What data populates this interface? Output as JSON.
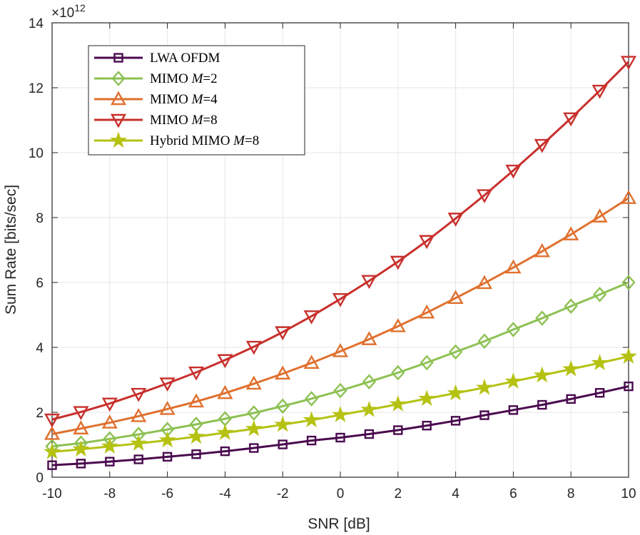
{
  "chart_data": {
    "type": "line",
    "xlabel": "SNR [dB]",
    "ylabel": "Sum Rate [bits/sec]",
    "exponent_base": "×10",
    "exponent_power": "12",
    "xlim": [
      -10,
      10
    ],
    "ylim": [
      0,
      14
    ],
    "xticks": [
      -10,
      -8,
      -6,
      -4,
      -2,
      0,
      2,
      4,
      6,
      8,
      10
    ],
    "yticks": [
      0,
      2,
      4,
      6,
      8,
      10,
      12,
      14
    ],
    "grid": true,
    "legend_position": "top-left",
    "x": [
      -10,
      -9,
      -8,
      -7,
      -6,
      -5,
      -4,
      -3,
      -2,
      -1,
      0,
      1,
      2,
      3,
      4,
      5,
      6,
      7,
      8,
      9,
      10
    ],
    "series": [
      {
        "name": "LWA OFDM",
        "legend_prefix": "LWA OFDM",
        "legend_italic": "",
        "legend_suffix": "",
        "color": "#4a0a4f",
        "marker": "square",
        "values": [
          0.37,
          0.42,
          0.48,
          0.55,
          0.63,
          0.71,
          0.8,
          0.9,
          1.01,
          1.13,
          1.22,
          1.33,
          1.45,
          1.59,
          1.74,
          1.91,
          2.07,
          2.23,
          2.41,
          2.6,
          2.8
        ]
      },
      {
        "name": "MIMO M=2",
        "legend_prefix": "MIMO ",
        "legend_italic": "M",
        "legend_suffix": "=2",
        "color": "#8cc152",
        "marker": "diamond",
        "values": [
          0.95,
          1.05,
          1.18,
          1.32,
          1.47,
          1.63,
          1.8,
          1.98,
          2.19,
          2.42,
          2.67,
          2.94,
          3.22,
          3.53,
          3.86,
          4.19,
          4.55,
          4.9,
          5.27,
          5.63,
          6.0
        ]
      },
      {
        "name": "MIMO M=4",
        "legend_prefix": "MIMO ",
        "legend_italic": "M",
        "legend_suffix": "=4",
        "color": "#e0702e",
        "marker": "triangle-up",
        "values": [
          1.33,
          1.5,
          1.68,
          1.88,
          2.1,
          2.33,
          2.59,
          2.88,
          3.19,
          3.52,
          3.88,
          4.25,
          4.65,
          5.07,
          5.52,
          5.98,
          6.46,
          6.96,
          7.48,
          8.03,
          8.6
        ]
      },
      {
        "name": "MIMO M=8",
        "legend_prefix": "MIMO ",
        "legend_italic": "M",
        "legend_suffix": "=8",
        "color": "#c8302c",
        "marker": "triangle-down",
        "values": [
          1.78,
          2.01,
          2.27,
          2.57,
          2.89,
          3.23,
          3.61,
          4.02,
          4.47,
          4.96,
          5.49,
          6.05,
          6.64,
          7.28,
          7.97,
          8.69,
          9.45,
          10.24,
          11.06,
          11.91,
          12.8
        ]
      },
      {
        "name": "Hybrid MIMO M=8",
        "legend_prefix": "Hybrid MIMO ",
        "legend_italic": "M",
        "legend_suffix": "=8",
        "color": "#b5c212",
        "marker": "star",
        "values": [
          0.78,
          0.86,
          0.95,
          1.04,
          1.14,
          1.25,
          1.37,
          1.49,
          1.62,
          1.76,
          1.92,
          2.08,
          2.25,
          2.42,
          2.59,
          2.76,
          2.95,
          3.14,
          3.33,
          3.52,
          3.72
        ]
      }
    ]
  }
}
